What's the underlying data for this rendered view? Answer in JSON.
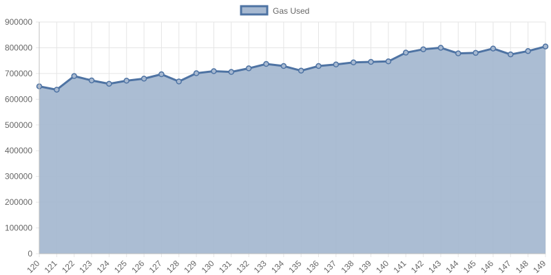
{
  "colors": {
    "line": "#4e73a3",
    "fill": "#a7b9d1",
    "grid": "#e5e5e5",
    "text": "#666666"
  },
  "legend": {
    "label": "Gas Used",
    "position": "top-center"
  },
  "chart_data": {
    "type": "area",
    "title": "",
    "xlabel": "",
    "ylabel": "",
    "x": [
      120,
      121,
      122,
      123,
      124,
      125,
      126,
      127,
      128,
      129,
      130,
      131,
      132,
      133,
      134,
      135,
      136,
      137,
      138,
      139,
      140,
      141,
      142,
      143,
      144,
      145,
      146,
      147,
      148,
      149
    ],
    "series": [
      {
        "name": "Gas Used",
        "values": [
          650000,
          637000,
          690000,
          673000,
          660000,
          672000,
          680000,
          697000,
          669000,
          701000,
          709000,
          706000,
          720000,
          737000,
          729000,
          711000,
          729000,
          735000,
          743000,
          745000,
          747000,
          781000,
          794000,
          800000,
          778000,
          780000,
          797000,
          774000,
          787000,
          805000
        ]
      }
    ],
    "ylim": [
      0,
      900000
    ],
    "yticks": [
      0,
      100000,
      200000,
      300000,
      400000,
      500000,
      600000,
      700000,
      800000,
      900000
    ],
    "grid": true,
    "legend_position": "top"
  }
}
